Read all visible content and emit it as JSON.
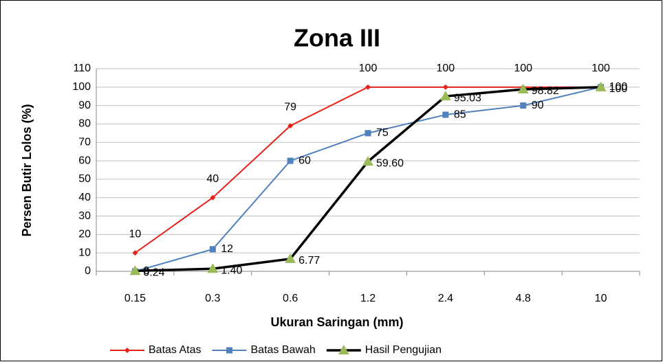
{
  "chart_data": {
    "type": "line",
    "title": "Zona III",
    "x_label": "Ukuran Saringan (mm)",
    "y_label": "Persen Butir Lolos (%)",
    "categories": [
      "0.15",
      "0.3",
      "0.6",
      "1.2",
      "2.4",
      "4.8",
      "10"
    ],
    "ylim": [
      0,
      110
    ],
    "yticks": [
      0,
      10,
      20,
      30,
      40,
      50,
      60,
      70,
      80,
      90,
      100,
      110
    ],
    "grid": true,
    "legend": "bottom",
    "series": [
      {
        "name": "Batas Atas",
        "color": "#e8201a",
        "marker": "diamond",
        "values": [
          10,
          40,
          79,
          100,
          100,
          100,
          100
        ]
      },
      {
        "name": "Batas Bawah",
        "color": "#4f81bd",
        "marker": "square",
        "values": [
          0,
          12,
          60,
          75,
          85,
          90,
          100
        ]
      },
      {
        "name": "Hasil Pengujian",
        "color": "#000000",
        "marker_color": "#9bbb59",
        "marker": "triangle",
        "values": [
          0.24,
          1.4,
          6.77,
          59.6,
          95.03,
          98.82,
          100
        ],
        "value_labels": [
          "0.24",
          "1.40",
          "6.77",
          "59.60",
          "95.03",
          "98.82",
          "100"
        ]
      }
    ]
  }
}
